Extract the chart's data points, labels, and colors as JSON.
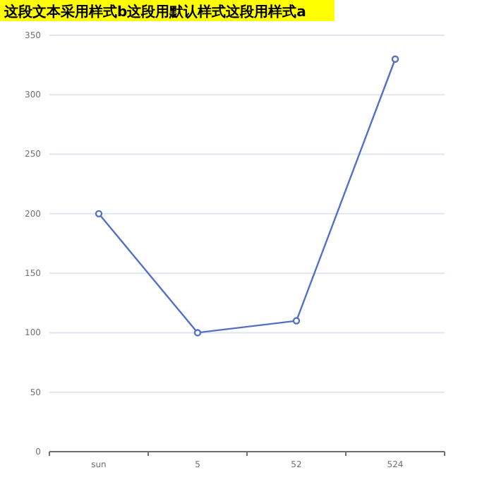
{
  "chart_data": {
    "type": "line",
    "title": "这段文本采用样式b这段用默认样式这段用样式a",
    "categories": [
      "sun",
      "5",
      "52",
      "524"
    ],
    "series": [
      {
        "color": "#5470c6",
        "values": [
          200,
          100,
          110,
          330
        ]
      }
    ],
    "ylim": [
      0,
      350
    ],
    "yticks": [
      0,
      50,
      100,
      150,
      200,
      250,
      300,
      350
    ],
    "grid": "y",
    "marker": "circle"
  }
}
